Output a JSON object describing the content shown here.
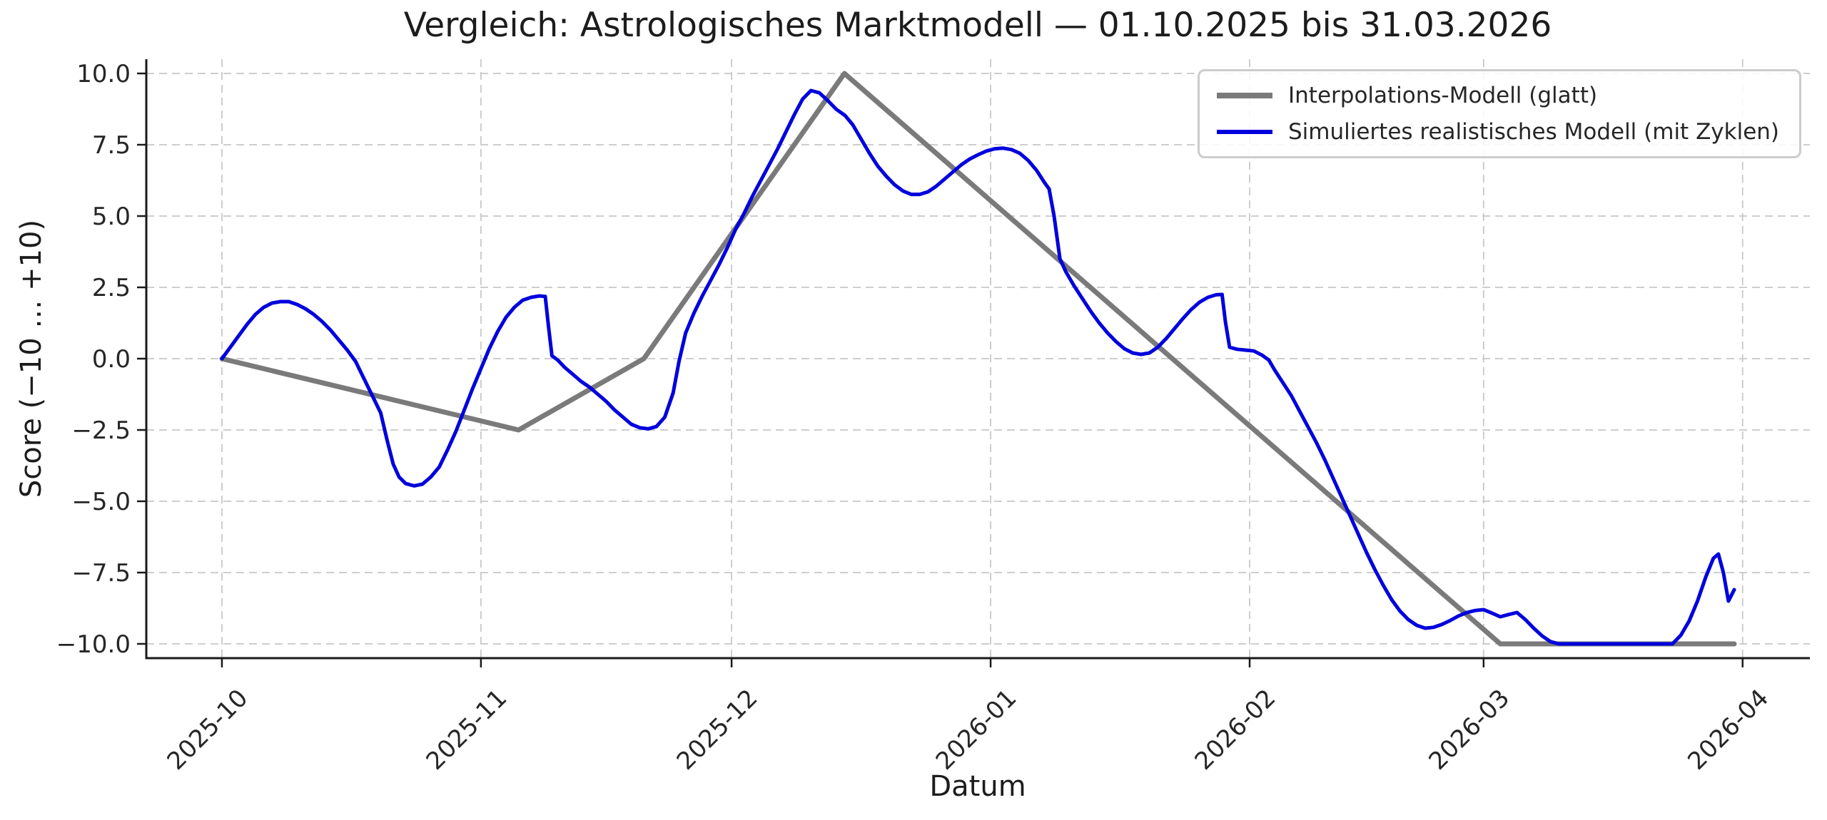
{
  "chart_data": {
    "type": "line",
    "title": "Vergleich: Astrologisches Marktmodell — 01.10.2025 bis 31.03.2026",
    "xlabel": "Datum",
    "ylabel": "Score (−10 … +10)",
    "x_encoding": "days since 2025-10-01",
    "xlim": [
      -9.05,
      190.05
    ],
    "ylim": [
      -10.5,
      10.5
    ],
    "grid": {
      "show": true,
      "color": "#c8c8c8",
      "dash": [
        11,
        7
      ],
      "width": 1.8
    },
    "legend_position": "upper right",
    "x_ticks": [
      {
        "day": 0,
        "label": "2025-10"
      },
      {
        "day": 31,
        "label": "2025-11"
      },
      {
        "day": 61,
        "label": "2025-12"
      },
      {
        "day": 92,
        "label": "2026-01"
      },
      {
        "day": 123,
        "label": "2026-02"
      },
      {
        "day": 151,
        "label": "2026-03"
      },
      {
        "day": 182,
        "label": "2026-04"
      }
    ],
    "y_ticks": [
      {
        "value": -10,
        "label": "−10.0"
      },
      {
        "value": -7.5,
        "label": "−7.5"
      },
      {
        "value": -5,
        "label": "−5.0"
      },
      {
        "value": -2.5,
        "label": "−2.5"
      },
      {
        "value": 0,
        "label": "0.0"
      },
      {
        "value": 2.5,
        "label": "2.5"
      },
      {
        "value": 5,
        "label": "5.0"
      },
      {
        "value": 7.5,
        "label": "7.5"
      },
      {
        "value": 10,
        "label": "10.0"
      }
    ],
    "colors": {
      "interpolation_line": "#7a7a7a",
      "simulation_line": "#0000dd",
      "grid": "#c8c8c8",
      "spine": "#1a1a1a",
      "text": "#262626",
      "legend_border": "#cccccc",
      "background": "#ffffff"
    },
    "series": [
      {
        "name": "Interpolations-Modell (glatt)",
        "color": "#7a7a7a",
        "linewidth": 7,
        "points": [
          [
            0,
            0
          ],
          [
            35.5,
            -2.5
          ],
          [
            50.5,
            0
          ],
          [
            74.5,
            10
          ],
          [
            153,
            -10
          ],
          [
            181,
            -10
          ]
        ]
      },
      {
        "name": "Simuliertes realistisches Modell (mit Zyklen)",
        "color": "#0000dd",
        "linewidth": 5,
        "points": [
          [
            0,
            0
          ],
          [
            1,
            0.4
          ],
          [
            2,
            0.8
          ],
          [
            3,
            1.2
          ],
          [
            4,
            1.55
          ],
          [
            5,
            1.8
          ],
          [
            6,
            1.95
          ],
          [
            7,
            2.0
          ],
          [
            8,
            2.0
          ],
          [
            9,
            1.9
          ],
          [
            10,
            1.75
          ],
          [
            11,
            1.55
          ],
          [
            12,
            1.3
          ],
          [
            13,
            1.0
          ],
          [
            14,
            0.65
          ],
          [
            15,
            0.3
          ],
          [
            16,
            -0.1
          ],
          [
            17,
            -0.7
          ],
          [
            18,
            -1.3
          ],
          [
            19,
            -1.9
          ],
          [
            19.8,
            -2.9
          ],
          [
            20.5,
            -3.7
          ],
          [
            21.2,
            -4.15
          ],
          [
            22,
            -4.38
          ],
          [
            23,
            -4.46
          ],
          [
            24,
            -4.4
          ],
          [
            25,
            -4.15
          ],
          [
            26,
            -3.8
          ],
          [
            27,
            -3.2
          ],
          [
            28,
            -2.55
          ],
          [
            29,
            -1.8
          ],
          [
            30,
            -1.05
          ],
          [
            31,
            -0.35
          ],
          [
            32,
            0.35
          ],
          [
            33,
            0.95
          ],
          [
            34,
            1.45
          ],
          [
            35,
            1.8
          ],
          [
            36,
            2.05
          ],
          [
            37,
            2.15
          ],
          [
            38,
            2.2
          ],
          [
            38.7,
            2.18
          ],
          [
            39.1,
            1.1
          ],
          [
            39.5,
            0.1
          ],
          [
            40.2,
            -0.05
          ],
          [
            41,
            -0.3
          ],
          [
            42,
            -0.55
          ],
          [
            43,
            -0.8
          ],
          [
            44,
            -1.0
          ],
          [
            45,
            -1.25
          ],
          [
            46,
            -1.5
          ],
          [
            47,
            -1.8
          ],
          [
            48,
            -2.05
          ],
          [
            49,
            -2.3
          ],
          [
            50,
            -2.42
          ],
          [
            51,
            -2.46
          ],
          [
            52,
            -2.38
          ],
          [
            53,
            -2.05
          ],
          [
            54,
            -1.2
          ],
          [
            54.7,
            -0.1
          ],
          [
            55.5,
            0.9
          ],
          [
            56.5,
            1.6
          ],
          [
            57.5,
            2.2
          ],
          [
            58.5,
            2.75
          ],
          [
            59.5,
            3.3
          ],
          [
            60.5,
            3.9
          ],
          [
            61.5,
            4.55
          ],
          [
            62.5,
            5.1
          ],
          [
            63.5,
            5.7
          ],
          [
            64.5,
            6.25
          ],
          [
            65.5,
            6.8
          ],
          [
            66.5,
            7.35
          ],
          [
            67.5,
            7.95
          ],
          [
            68.5,
            8.55
          ],
          [
            69.5,
            9.1
          ],
          [
            70.5,
            9.4
          ],
          [
            71.5,
            9.32
          ],
          [
            72.5,
            9.05
          ],
          [
            73.5,
            8.75
          ],
          [
            74.6,
            8.52
          ],
          [
            75.5,
            8.2
          ],
          [
            76.5,
            7.7
          ],
          [
            77.5,
            7.2
          ],
          [
            78.5,
            6.75
          ],
          [
            79.5,
            6.4
          ],
          [
            80.5,
            6.1
          ],
          [
            81.5,
            5.88
          ],
          [
            82.5,
            5.76
          ],
          [
            83.5,
            5.76
          ],
          [
            84.5,
            5.85
          ],
          [
            85.5,
            6.05
          ],
          [
            86.5,
            6.3
          ],
          [
            87.5,
            6.55
          ],
          [
            88.5,
            6.8
          ],
          [
            89.5,
            7.0
          ],
          [
            90.5,
            7.15
          ],
          [
            91.5,
            7.28
          ],
          [
            92.5,
            7.36
          ],
          [
            93.5,
            7.38
          ],
          [
            94.5,
            7.33
          ],
          [
            95.5,
            7.2
          ],
          [
            96.5,
            6.95
          ],
          [
            97.5,
            6.6
          ],
          [
            98.5,
            6.15
          ],
          [
            99,
            5.95
          ],
          [
            99.6,
            5.0
          ],
          [
            100.3,
            3.5
          ],
          [
            101,
            3.05
          ],
          [
            102,
            2.55
          ],
          [
            103,
            2.1
          ],
          [
            104,
            1.65
          ],
          [
            105,
            1.25
          ],
          [
            106,
            0.9
          ],
          [
            107,
            0.6
          ],
          [
            108,
            0.35
          ],
          [
            109,
            0.2
          ],
          [
            110,
            0.15
          ],
          [
            111,
            0.2
          ],
          [
            112,
            0.4
          ],
          [
            113,
            0.7
          ],
          [
            114,
            1.05
          ],
          [
            115,
            1.4
          ],
          [
            116,
            1.72
          ],
          [
            117,
            1.98
          ],
          [
            118,
            2.15
          ],
          [
            119,
            2.24
          ],
          [
            119.7,
            2.25
          ],
          [
            120.1,
            1.3
          ],
          [
            120.6,
            0.4
          ],
          [
            121.5,
            0.33
          ],
          [
            122.5,
            0.3
          ],
          [
            123.5,
            0.27
          ],
          [
            124.5,
            0.12
          ],
          [
            125.3,
            -0.05
          ],
          [
            126,
            -0.4
          ],
          [
            127,
            -0.85
          ],
          [
            128,
            -1.3
          ],
          [
            129,
            -1.85
          ],
          [
            130,
            -2.4
          ],
          [
            131,
            -2.95
          ],
          [
            132,
            -3.55
          ],
          [
            133,
            -4.2
          ],
          [
            134,
            -4.85
          ],
          [
            135,
            -5.5
          ],
          [
            136,
            -6.15
          ],
          [
            137,
            -6.8
          ],
          [
            138,
            -7.4
          ],
          [
            139,
            -7.95
          ],
          [
            140,
            -8.45
          ],
          [
            141,
            -8.85
          ],
          [
            142,
            -9.15
          ],
          [
            143,
            -9.35
          ],
          [
            144,
            -9.45
          ],
          [
            145,
            -9.42
          ],
          [
            146,
            -9.32
          ],
          [
            147,
            -9.18
          ],
          [
            148,
            -9.02
          ],
          [
            149,
            -8.9
          ],
          [
            150,
            -8.83
          ],
          [
            151,
            -8.8
          ],
          [
            152,
            -8.92
          ],
          [
            153,
            -9.05
          ],
          [
            154,
            -8.97
          ],
          [
            155,
            -8.9
          ],
          [
            156,
            -9.15
          ],
          [
            157,
            -9.45
          ],
          [
            158,
            -9.72
          ],
          [
            159,
            -9.92
          ],
          [
            160,
            -10
          ],
          [
            164,
            -10
          ],
          [
            168,
            -10
          ],
          [
            172,
            -10
          ],
          [
            173.6,
            -10
          ],
          [
            174.6,
            -9.7
          ],
          [
            175.6,
            -9.2
          ],
          [
            176.6,
            -8.5
          ],
          [
            177.6,
            -7.65
          ],
          [
            178.5,
            -7.0
          ],
          [
            179.1,
            -6.85
          ],
          [
            179.7,
            -7.5
          ],
          [
            180.3,
            -8.5
          ],
          [
            181,
            -8.1
          ]
        ]
      }
    ]
  }
}
